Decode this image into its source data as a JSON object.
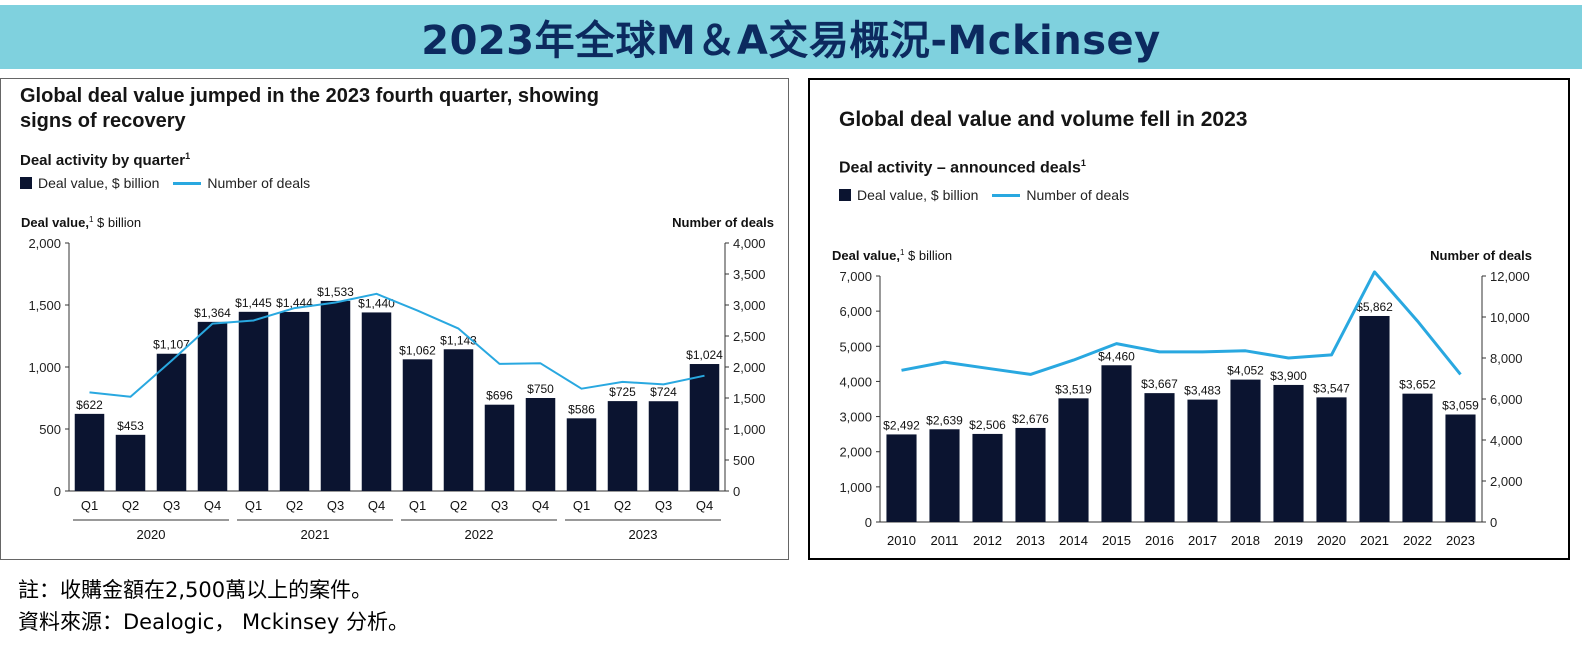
{
  "banner": {
    "title": "2023年全球M＆A交易概況-Mckinsey"
  },
  "notes": {
    "line1": "註：收購金額在2,500萬以上的案件。",
    "line2": "資料來源：Dealogic， Mckinsey 分析。"
  },
  "chart_data": [
    {
      "type": "bar",
      "title": "Global deal value jumped in the 2023 fourth quarter, showing signs of recovery",
      "subtitle": "Deal activity by quarter",
      "subtitle_sup": "1",
      "legend": {
        "bar_label": "Deal value, $ billion",
        "line_label": "Number of deals",
        "placement": "top-left"
      },
      "ylabel_bold": "Deal value,",
      "ylabel_sup": "1",
      "ylabel_rest": " $ billion",
      "y2label": "Number of deals",
      "ylim": [
        0,
        2000
      ],
      "y2lim": [
        0,
        4000
      ],
      "yticks": [
        0,
        500,
        1000,
        1500,
        2000
      ],
      "yticks_text": [
        "0",
        "500",
        "1,000",
        "1,500",
        "2,000"
      ],
      "y2ticks": [
        0,
        500,
        1000,
        1500,
        2000,
        2500,
        3000,
        3500,
        4000
      ],
      "y2ticks_text": [
        "0",
        "500",
        "1,000",
        "1,500",
        "2,000",
        "2,500",
        "3,000",
        "3,500",
        "4,000"
      ],
      "categories": [
        "Q1",
        "Q2",
        "Q3",
        "Q4",
        "Q1",
        "Q2",
        "Q3",
        "Q4",
        "Q1",
        "Q2",
        "Q3",
        "Q4",
        "Q1",
        "Q2",
        "Q3",
        "Q4"
      ],
      "groups": [
        "2020",
        "2021",
        "2022",
        "2023"
      ],
      "values": [
        622,
        453,
        1107,
        1364,
        1445,
        1444,
        1533,
        1440,
        1062,
        1143,
        696,
        750,
        586,
        725,
        724,
        1024
      ],
      "value_labels": [
        "$622",
        "$453",
        "$1,107",
        "$1,364",
        "$1,445",
        "$1,444",
        "$1,533",
        "$1,440",
        "$1,062",
        "$1,143",
        "$696",
        "$750",
        "$586",
        "$725",
        "$724",
        "$1,024"
      ],
      "line_values": [
        1590,
        1520,
        2100,
        2700,
        2750,
        2950,
        3040,
        3180,
        2910,
        2620,
        2050,
        2060,
        1650,
        1760,
        1720,
        1860
      ],
      "colors": {
        "bar": "#0b1430",
        "line": "#29a8e0"
      }
    },
    {
      "type": "bar",
      "title": "Global deal value and volume fell in 2023",
      "subtitle": "Deal activity – announced deals",
      "subtitle_sup": "1",
      "legend": {
        "bar_label": "Deal value, $ billion",
        "line_label": "Number of deals",
        "placement": "top-left"
      },
      "ylabel_bold": "Deal value,",
      "ylabel_sup": "1",
      "ylabel_rest": " $ billion",
      "y2label": "Number of deals",
      "ylim": [
        0,
        7000
      ],
      "y2lim": [
        0,
        12000
      ],
      "yticks": [
        0,
        1000,
        2000,
        3000,
        4000,
        5000,
        6000,
        7000
      ],
      "yticks_text": [
        "0",
        "1,000",
        "2,000",
        "3,000",
        "4,000",
        "5,000",
        "6,000",
        "7,000"
      ],
      "y2ticks": [
        0,
        2000,
        4000,
        6000,
        8000,
        10000,
        12000
      ],
      "y2ticks_text": [
        "0",
        "2,000",
        "4,000",
        "6,000",
        "8,000",
        "10,000",
        "12,000"
      ],
      "categories": [
        "2010",
        "2011",
        "2012",
        "2013",
        "2014",
        "2015",
        "2016",
        "2017",
        "2018",
        "2019",
        "2020",
        "2021",
        "2022",
        "2023"
      ],
      "values": [
        2492,
        2639,
        2506,
        2676,
        3519,
        4460,
        3667,
        3483,
        4052,
        3900,
        3547,
        5862,
        3652,
        3059
      ],
      "value_labels": [
        "$2,492",
        "$2,639",
        "$2,506",
        "$2,676",
        "$3,519",
        "$4,460",
        "$3,667",
        "$3,483",
        "$4,052",
        "$3,900",
        "$3,547",
        "$5,862",
        "$3,652",
        "$3,059"
      ],
      "line_values": [
        7400,
        7800,
        7500,
        7200,
        7900,
        8700,
        8300,
        8300,
        8350,
        8000,
        8150,
        12200,
        9800,
        7200
      ],
      "colors": {
        "bar": "#0b1430",
        "line": "#29a8e0"
      }
    }
  ]
}
